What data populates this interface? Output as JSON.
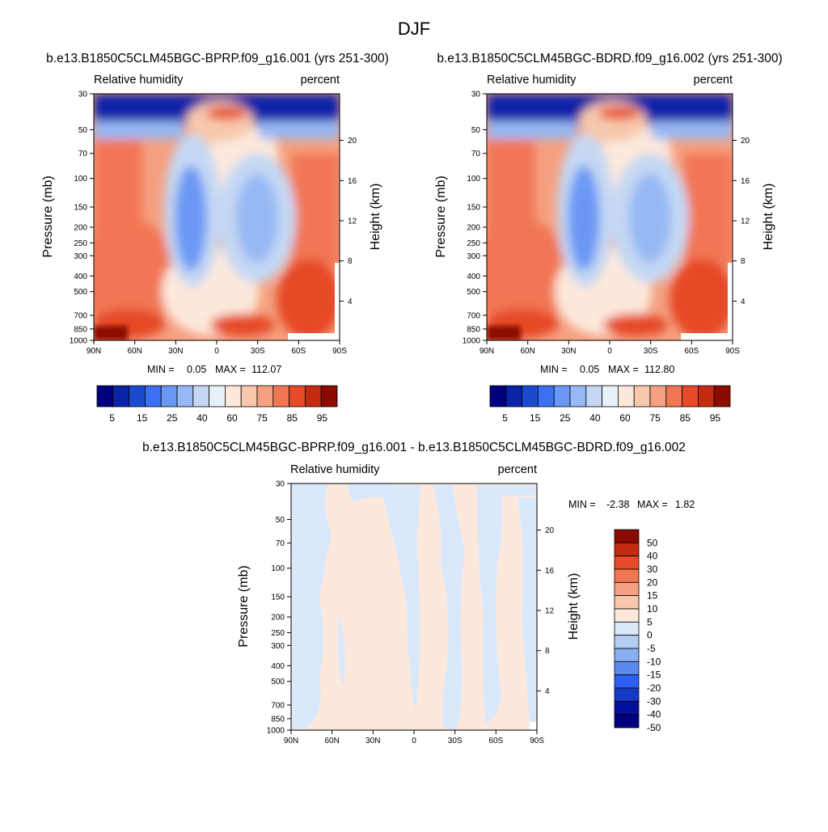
{
  "figure": {
    "title": "DJF"
  },
  "colors": {
    "absolute_scale": [
      "#00007e",
      "#0a24a8",
      "#1b4ad0",
      "#3c70f0",
      "#6a98f4",
      "#96b8f4",
      "#c4d8f4",
      "#e8f0f8",
      "#fde9dc",
      "#f8c8ac",
      "#f5a080",
      "#f27654",
      "#e64a28",
      "#c42c12",
      "#8c0a00"
    ],
    "diff_scale": [
      "#8c0a00",
      "#c42c12",
      "#e64a28",
      "#f27654",
      "#f5a080",
      "#f8c8ac",
      "#fde9dc",
      "#d9e8fb",
      "#b4cdf5",
      "#89aef0",
      "#5a8aee",
      "#2e5ff0",
      "#1438c8",
      "#05109a",
      "#00007e"
    ]
  },
  "chart_data": [
    {
      "type": "heatmap",
      "panel": "left",
      "title": "b.e13.B1850C5CLM45BGC-BPRP.f09_g16.001 (yrs 251-300)",
      "left_label": "Relative humidity",
      "right_label": "percent",
      "ylabel": "Pressure (mb)",
      "ylabel_right": "Height (km)",
      "x_ticks": [
        "90N",
        "60N",
        "30N",
        "0",
        "30S",
        "60S",
        "90S"
      ],
      "y_ticks": [
        "30",
        "50",
        "70",
        "100",
        "150",
        "200",
        "250",
        "300",
        "400",
        "500",
        "700",
        "850",
        "1000"
      ],
      "y2_ticks": [
        "20",
        "16",
        "12",
        "8",
        "4"
      ],
      "min_label": "MIN =",
      "min_value": "0.05",
      "max_label": "MAX =",
      "max_value": "112.07",
      "colorbar_labels": [
        "5",
        "15",
        "25",
        "40",
        "60",
        "75",
        "85",
        "95"
      ]
    },
    {
      "type": "heatmap",
      "panel": "right",
      "title": "b.e13.B1850C5CLM45BGC-BDRD.f09_g16.002 (yrs 251-300)",
      "left_label": "Relative humidity",
      "right_label": "percent",
      "ylabel": "Pressure (mb)",
      "ylabel_right": "Height (km)",
      "x_ticks": [
        "90N",
        "60N",
        "30N",
        "0",
        "30S",
        "60S",
        "90S"
      ],
      "y_ticks": [
        "30",
        "50",
        "70",
        "100",
        "150",
        "200",
        "250",
        "300",
        "400",
        "500",
        "700",
        "850",
        "1000"
      ],
      "y2_ticks": [
        "20",
        "16",
        "12",
        "8",
        "4"
      ],
      "min_label": "MIN =",
      "min_value": "0.05",
      "max_label": "MAX =",
      "max_value": "112.80",
      "colorbar_labels": [
        "5",
        "15",
        "25",
        "40",
        "60",
        "75",
        "85",
        "95"
      ]
    },
    {
      "type": "heatmap",
      "panel": "difference",
      "title": "b.e13.B1850C5CLM45BGC-BPRP.f09_g16.001 - b.e13.B1850C5CLM45BGC-BDRD.f09_g16.002",
      "left_label": "Relative humidity",
      "right_label": "percent",
      "ylabel": "Pressure (mb)",
      "ylabel_right": "Height (km)",
      "x_ticks": [
        "90N",
        "60N",
        "30N",
        "0",
        "30S",
        "60S",
        "90S"
      ],
      "y_ticks": [
        "30",
        "50",
        "70",
        "100",
        "150",
        "200",
        "250",
        "300",
        "400",
        "500",
        "700",
        "850",
        "1000"
      ],
      "y2_ticks": [
        "20",
        "16",
        "12",
        "8",
        "4"
      ],
      "min_label": "MIN =",
      "min_value": "-2.38",
      "max_label": "MAX =",
      "max_value": "1.82",
      "colorbar_labels": [
        "50",
        "40",
        "30",
        "20",
        "15",
        "10",
        "5",
        "0",
        "-5",
        "-10",
        "-15",
        "-20",
        "-30",
        "-40",
        "-50"
      ]
    }
  ]
}
